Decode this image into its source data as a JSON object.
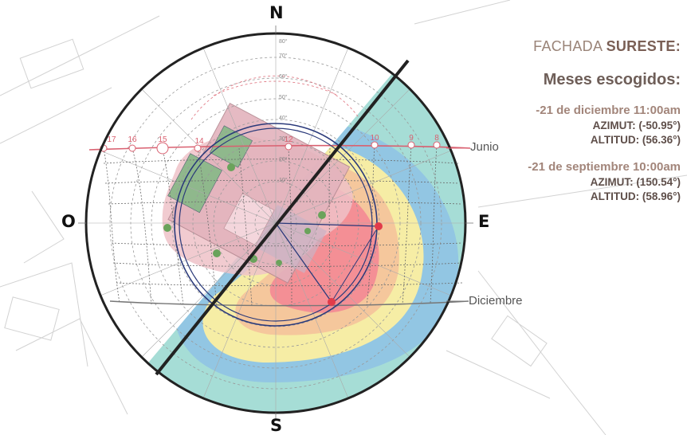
{
  "compass": {
    "north": "N",
    "south": "S",
    "west": "O",
    "east": "E"
  },
  "curves": {
    "summer": "Junio",
    "winter": "Diciembre"
  },
  "hour_labels": [
    "17",
    "16",
    "15",
    "14",
    "12",
    "10",
    "9",
    "8"
  ],
  "altitude_labels": [
    "80°",
    "70°",
    "60°",
    "50°",
    "40°",
    "30°",
    "20°",
    "10°"
  ],
  "panel": {
    "title_light": "FACHADA",
    "title_bold": "SURESTE:",
    "subtitle": "Meses escogidos:",
    "cases": [
      {
        "head": "-21 de diciembre 11:00am",
        "azimut": "AZIMUT: (-50.95°)",
        "altitud": "ALTITUD: (56.36°)"
      },
      {
        "head": "-21 de septiembre 10:00am",
        "azimut": "AZIMUT: (150.54°)",
        "altitud": "ALTITUD: (58.96°)"
      }
    ]
  },
  "colors": {
    "cyan": "#a6ddd6",
    "blue": "#92c6e3",
    "yellow": "#f6eda5",
    "orange": "#f5c79c",
    "red": "#f48f95",
    "pink": "#efc2c8",
    "ring": "#2b3a7a",
    "accent_red": "#e23b4a",
    "facade_line": "#222222"
  }
}
